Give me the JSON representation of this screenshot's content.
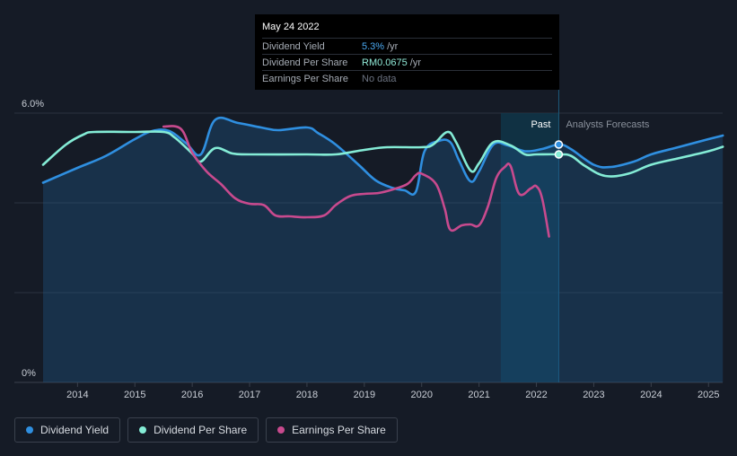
{
  "chart_data": {
    "type": "line",
    "x_range": [
      2013.4,
      2025.25
    ],
    "ylim": [
      0,
      6.0
    ],
    "y_ticks": [
      {
        "value": 6.0,
        "label": "6.0%"
      },
      {
        "value": 0,
        "label": "0%"
      }
    ],
    "x_ticks": [
      2014,
      2015,
      2016,
      2017,
      2018,
      2019,
      2020,
      2021,
      2022,
      2023,
      2024,
      2025
    ],
    "past_region": {
      "start": 2021.38,
      "end": 2022.39,
      "label": "Past"
    },
    "forecast_label": "Analysts Forecasts",
    "series": [
      {
        "name": "Dividend Yield",
        "color": "#2f8fe0",
        "filled": true,
        "points": [
          [
            2013.4,
            4.45
          ],
          [
            2014.0,
            4.78
          ],
          [
            2014.5,
            5.05
          ],
          [
            2015.0,
            5.42
          ],
          [
            2015.3,
            5.6
          ],
          [
            2015.6,
            5.6
          ],
          [
            2015.9,
            5.32
          ],
          [
            2016.15,
            5.08
          ],
          [
            2016.4,
            5.85
          ],
          [
            2016.8,
            5.78
          ],
          [
            2017.2,
            5.68
          ],
          [
            2017.5,
            5.62
          ],
          [
            2018.0,
            5.68
          ],
          [
            2018.2,
            5.55
          ],
          [
            2018.5,
            5.3
          ],
          [
            2018.9,
            4.85
          ],
          [
            2019.2,
            4.5
          ],
          [
            2019.5,
            4.33
          ],
          [
            2019.7,
            4.28
          ],
          [
            2019.9,
            4.25
          ],
          [
            2020.05,
            5.15
          ],
          [
            2020.3,
            5.38
          ],
          [
            2020.5,
            5.35
          ],
          [
            2020.65,
            4.95
          ],
          [
            2020.85,
            4.48
          ],
          [
            2021.0,
            4.7
          ],
          [
            2021.25,
            5.3
          ],
          [
            2021.5,
            5.28
          ],
          [
            2021.8,
            5.15
          ],
          [
            2022.1,
            5.2
          ],
          [
            2022.39,
            5.3
          ],
          [
            2022.6,
            5.2
          ],
          [
            2023.0,
            4.85
          ],
          [
            2023.3,
            4.8
          ],
          [
            2023.7,
            4.92
          ],
          [
            2024.0,
            5.08
          ],
          [
            2024.5,
            5.25
          ],
          [
            2025.0,
            5.42
          ],
          [
            2025.25,
            5.5
          ]
        ]
      },
      {
        "name": "Dividend Per Share",
        "color": "#84ecd6",
        "filled": false,
        "points": [
          [
            2013.4,
            4.85
          ],
          [
            2013.8,
            5.3
          ],
          [
            2014.1,
            5.52
          ],
          [
            2014.3,
            5.58
          ],
          [
            2015.0,
            5.58
          ],
          [
            2015.5,
            5.58
          ],
          [
            2015.7,
            5.45
          ],
          [
            2016.0,
            5.1
          ],
          [
            2016.15,
            4.92
          ],
          [
            2016.4,
            5.22
          ],
          [
            2016.7,
            5.1
          ],
          [
            2017.0,
            5.08
          ],
          [
            2018.0,
            5.08
          ],
          [
            2018.5,
            5.08
          ],
          [
            2019.0,
            5.18
          ],
          [
            2019.4,
            5.24
          ],
          [
            2020.0,
            5.24
          ],
          [
            2020.2,
            5.3
          ],
          [
            2020.45,
            5.58
          ],
          [
            2020.6,
            5.35
          ],
          [
            2020.85,
            4.72
          ],
          [
            2021.0,
            4.88
          ],
          [
            2021.25,
            5.35
          ],
          [
            2021.55,
            5.28
          ],
          [
            2021.8,
            5.08
          ],
          [
            2022.0,
            5.08
          ],
          [
            2022.39,
            5.08
          ],
          [
            2022.6,
            5.05
          ],
          [
            2022.85,
            4.82
          ],
          [
            2023.2,
            4.6
          ],
          [
            2023.6,
            4.65
          ],
          [
            2024.0,
            4.85
          ],
          [
            2024.5,
            5.0
          ],
          [
            2025.0,
            5.15
          ],
          [
            2025.25,
            5.25
          ]
        ]
      },
      {
        "name": "Earnings Per Share",
        "color": "#c84a8e",
        "filled": false,
        "points": [
          [
            2015.5,
            5.7
          ],
          [
            2015.8,
            5.65
          ],
          [
            2016.0,
            5.12
          ],
          [
            2016.25,
            4.7
          ],
          [
            2016.5,
            4.42
          ],
          [
            2016.75,
            4.1
          ],
          [
            2017.0,
            3.98
          ],
          [
            2017.25,
            3.95
          ],
          [
            2017.45,
            3.72
          ],
          [
            2017.7,
            3.7
          ],
          [
            2018.0,
            3.68
          ],
          [
            2018.3,
            3.72
          ],
          [
            2018.5,
            3.95
          ],
          [
            2018.75,
            4.15
          ],
          [
            2019.0,
            4.2
          ],
          [
            2019.25,
            4.22
          ],
          [
            2019.5,
            4.3
          ],
          [
            2019.75,
            4.42
          ],
          [
            2019.9,
            4.62
          ],
          [
            2020.0,
            4.65
          ],
          [
            2020.25,
            4.42
          ],
          [
            2020.4,
            3.88
          ],
          [
            2020.5,
            3.4
          ],
          [
            2020.7,
            3.5
          ],
          [
            2020.85,
            3.52
          ],
          [
            2021.0,
            3.5
          ],
          [
            2021.15,
            3.9
          ],
          [
            2021.3,
            4.55
          ],
          [
            2021.45,
            4.8
          ],
          [
            2021.55,
            4.82
          ],
          [
            2021.7,
            4.2
          ],
          [
            2021.9,
            4.32
          ],
          [
            2022.0,
            4.37
          ],
          [
            2022.1,
            4.1
          ],
          [
            2022.22,
            3.25
          ]
        ]
      }
    ],
    "markers": [
      {
        "series": "Dividend Yield",
        "x": 2022.39,
        "y": 5.3
      },
      {
        "series": "Dividend Per Share",
        "x": 2022.39,
        "y": 5.08
      }
    ]
  },
  "tooltip": {
    "date": "May 24 2022",
    "rows": [
      {
        "label": "Dividend Yield",
        "value": "5.3%",
        "unit": "/yr"
      },
      {
        "label": "Dividend Per Share",
        "value": "RM0.0675",
        "unit": "/yr"
      },
      {
        "label": "Earnings Per Share",
        "value": "No data",
        "unit": ""
      }
    ]
  },
  "legend": [
    {
      "label": "Dividend Yield",
      "color": "#2f8fe0"
    },
    {
      "label": "Dividend Per Share",
      "color": "#84ecd6"
    },
    {
      "label": "Earnings Per Share",
      "color": "#c84a8e"
    }
  ]
}
